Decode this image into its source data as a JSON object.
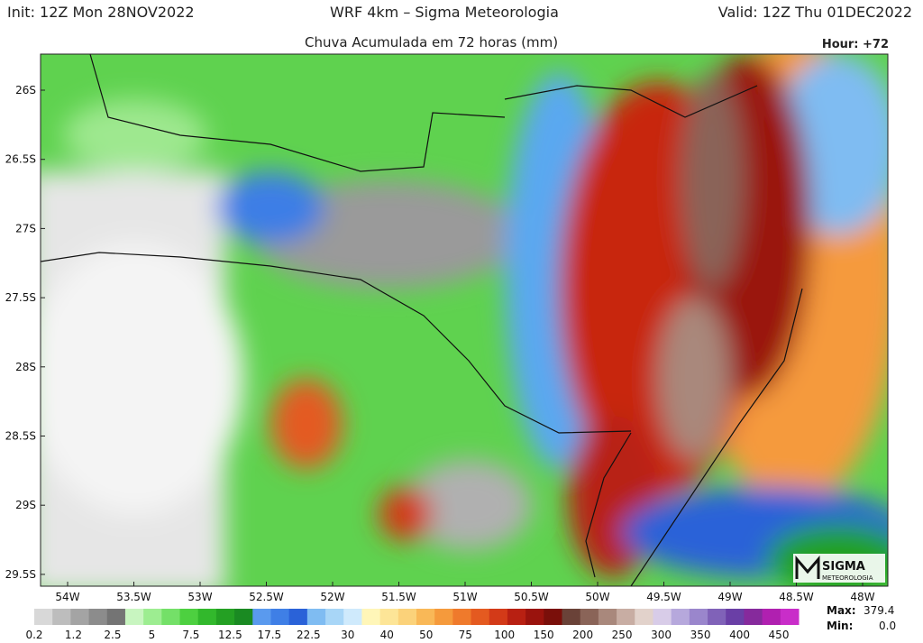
{
  "header": {
    "init": "Init: 12Z Mon 28NOV2022",
    "model": "WRF 4km – Sigma Meteorologia",
    "valid": "Valid: 12Z Thu 01DEC2022",
    "subtitle": "Chuva Acumulada em 72 horas (mm)",
    "hour": "Hour: +72"
  },
  "map": {
    "lat_labels": [
      "26S",
      "26.5S",
      "27S",
      "27.5S",
      "28S",
      "28.5S",
      "29S",
      "29.5S"
    ],
    "lon_labels": [
      "54W",
      "53.5W",
      "53W",
      "52.5W",
      "52W",
      "51.5W",
      "51W",
      "50.5W",
      "50W",
      "49.5W",
      "49W",
      "48.5W",
      "48W"
    ]
  },
  "colorbar": {
    "labels": [
      "0.2",
      "1.2",
      "2.5",
      "5",
      "7.5",
      "12.5",
      "17.5",
      "22.5",
      "30",
      "40",
      "50",
      "75",
      "100",
      "150",
      "200",
      "250",
      "300",
      "350",
      "400",
      "450"
    ],
    "colors": [
      "#d8d8d8",
      "#bdbdbd",
      "#a4a4a4",
      "#8c8c8c",
      "#747474",
      "#c8f5c0",
      "#9ded91",
      "#74e068",
      "#4dd040",
      "#32b82c",
      "#24a023",
      "#1a8a22",
      "#5a9aee",
      "#3f7fe6",
      "#2a62d8",
      "#7fbcf2",
      "#a8d6f7",
      "#cfeafc",
      "#fff6b8",
      "#fde597",
      "#fbd27a",
      "#f9b857",
      "#f59a3c",
      "#ef7a2c",
      "#e45a20",
      "#d33a18",
      "#b82012",
      "#9a130d",
      "#7a0f0a",
      "#6a4238",
      "#8a6458",
      "#a9887c",
      "#c8ada3",
      "#e2d2cb",
      "#d8cce8",
      "#b6a8dc",
      "#9a86cc",
      "#8062b8",
      "#6a3fa6",
      "#862a9c",
      "#b020b0",
      "#c92dc9"
    ]
  },
  "stats": {
    "max_label": "Max:",
    "max": "379.4",
    "min_label": "Min:",
    "min": "0.0"
  },
  "logo": {
    "name": "SIGMA",
    "sub": "METEOROLOGIA"
  }
}
